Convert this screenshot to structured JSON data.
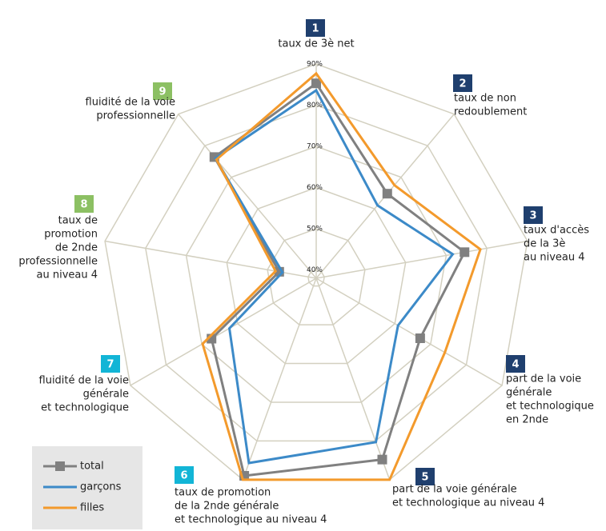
{
  "chart_data": {
    "type": "radar",
    "categories": [
      [
        "taux de 3è net"
      ],
      [
        "taux de non",
        "redoublement"
      ],
      [
        "taux d'accès",
        "de la 3è",
        "au niveau 4"
      ],
      [
        "part de la voie",
        "générale",
        "et technologique",
        "en 2nde"
      ],
      [
        "part de la voie générale",
        "et technologique au niveau 4"
      ],
      [
        "taux de promotion",
        "de la 2nde générale",
        "et technologique au niveau 4"
      ],
      [
        "fluidité de la voie",
        "générale",
        "et technologique"
      ],
      [
        "taux de",
        "promotion",
        "de 2nde",
        "professionnelle",
        "au niveau 4"
      ],
      [
        "fluidité de la voie",
        "professionnelle"
      ]
    ],
    "category_numbers": [
      "1",
      "2",
      "3",
      "4",
      "5",
      "6",
      "7",
      "8",
      "9"
    ],
    "category_colors": [
      "#1f3f6e",
      "#1f3f6e",
      "#1f3f6e",
      "#1f3f6e",
      "#1f3f6e",
      "#12b5d6",
      "#12b5d6",
      "#8cc063",
      "#8cc063"
    ],
    "series": [
      {
        "name": "total",
        "color": "#808080",
        "values": [
          85.3,
          64.8,
          74.5,
          67.1,
          84.8,
          89,
          67.3,
          47.1,
          76.4
        ]
      },
      {
        "name": "garçons",
        "color": "#3c8ac8",
        "values": [
          83.6,
          61.1,
          71.6,
          60.9,
          80.3,
          85.7,
          62.3,
          46.3,
          76
        ]
      },
      {
        "name": "filles",
        "color": "#f39a2c",
        "values": [
          87.7,
          67.5,
          78.4,
          74,
          90,
          90,
          69.8,
          48,
          75.6
        ]
      }
    ],
    "rlim": [
      38,
      90
    ],
    "rticks": [
      {
        "value": 40,
        "label": "40%"
      },
      {
        "value": 50,
        "label": "50%"
      },
      {
        "value": 60,
        "label": "60%"
      },
      {
        "value": 70,
        "label": "70%"
      },
      {
        "value": 80,
        "label": "80%"
      },
      {
        "value": 90,
        "label": "90%"
      }
    ],
    "grid": true
  }
}
